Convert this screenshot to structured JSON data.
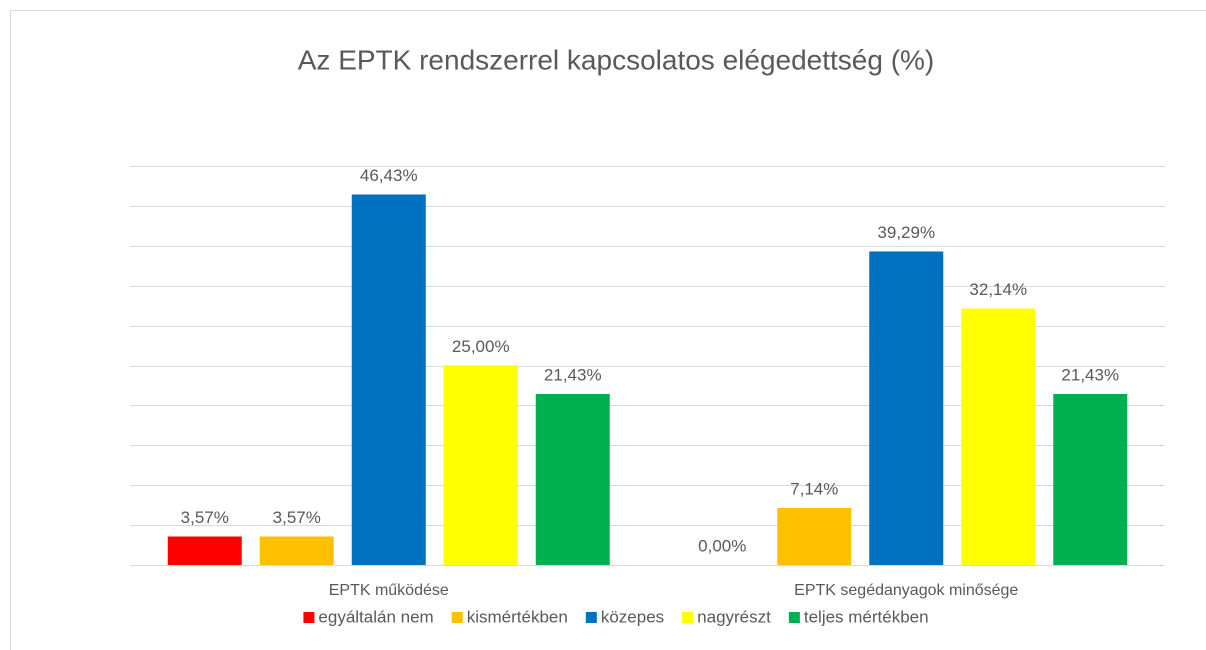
{
  "chart_data": {
    "type": "bar",
    "title": "Az EPTK rendszerrel kapcsolatos elégedettség (%)",
    "categories": [
      "EPTK működése",
      "EPTK segédanyagok minősége"
    ],
    "series": [
      {
        "name": "egyáltalán nem",
        "color": "#ff0000",
        "values": [
          3.57,
          0
        ],
        "value_labels": [
          "3,57%",
          "0,00%"
        ]
      },
      {
        "name": "kismértékben",
        "color": "#ffc000",
        "values": [
          3.57,
          7.14
        ],
        "value_labels": [
          "3,57%",
          "7,14%"
        ]
      },
      {
        "name": "közepes",
        "color": "#0070c0",
        "values": [
          46.43,
          39.29
        ],
        "value_labels": [
          "46,43%",
          "39,29%"
        ]
      },
      {
        "name": "nagyrészt",
        "color": "#ffff00",
        "values": [
          25,
          32.14
        ],
        "value_labels": [
          "25,00%",
          "32,14%"
        ]
      },
      {
        "name": "teljes mértékben",
        "color": "#00b050",
        "values": [
          21.43,
          21.43
        ],
        "value_labels": [
          "21,43%",
          "21,43%"
        ]
      }
    ],
    "ylim": [
      0,
      50
    ],
    "yticks": [
      0,
      5,
      10,
      15,
      20,
      25,
      30,
      35,
      40,
      45,
      50
    ],
    "grid": true,
    "legend": "bottom"
  }
}
